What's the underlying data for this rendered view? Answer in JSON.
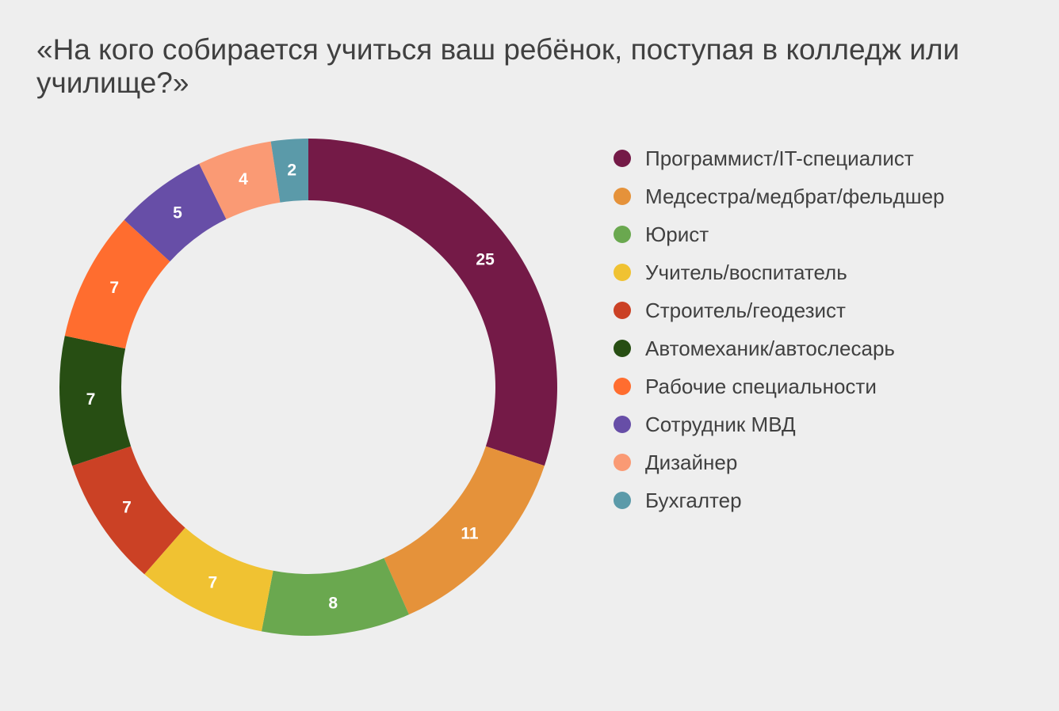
{
  "chart_data": {
    "type": "pie",
    "subtype": "donut",
    "title": "«На кого собирается учиться ваш ребёнок, поступая в колледж или училище?»",
    "legend_position": "right",
    "categories": [
      "Программист/IT-специалист",
      "Медсестра/медбрат/фельдшер",
      "Юрист",
      "Учитель/воспитатель",
      "Строитель/геодезист",
      "Автомеханик/автослесарь",
      "Рабочие специальности",
      "Сотрудник МВД",
      "Дизайнер",
      "Бухгалтер"
    ],
    "values": [
      25,
      11,
      8,
      7,
      7,
      7,
      7,
      5,
      4,
      2
    ],
    "colors": [
      "#741a47",
      "#e5923a",
      "#6aa84f",
      "#f0c232",
      "#cb4125",
      "#274e13",
      "#ff6d2f",
      "#674ea7",
      "#fa9a74",
      "#5b9aa9"
    ],
    "label_color": "#ffffff"
  }
}
